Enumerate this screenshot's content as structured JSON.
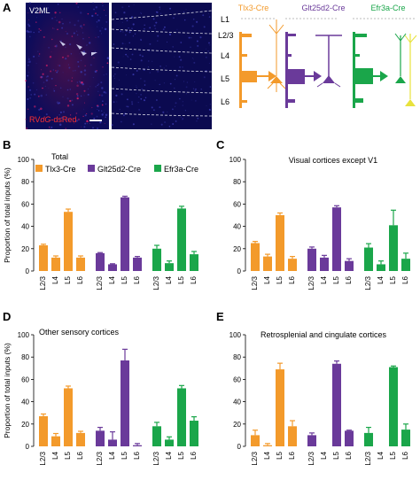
{
  "panel_letters": [
    "A",
    "B",
    "C",
    "D",
    "E"
  ],
  "panel_a": {
    "region_label": "V2ML",
    "stain_label_prefix": "RV",
    "stain_label_italic": "dG",
    "stain_label_suffix": "-dsRed",
    "layers": [
      "L1",
      "L2/3",
      "L4",
      "L5",
      "L6"
    ],
    "lines": [
      {
        "name": "Tlx3-Cre",
        "color": "#f39a2b"
      },
      {
        "name": "Glt25d2-Cre",
        "color": "#6a3a9a"
      },
      {
        "name": "Efr3a-Cre",
        "color": "#1aa64a"
      }
    ],
    "efr3a_secondary_color": "#e8e23c"
  },
  "y_axis_label": "Proportion of total inputs (%)",
  "legend": [
    "Tlx3-Cre",
    "Glt25d2-Cre",
    "Efr3a-Cre"
  ],
  "colors": [
    "#f39a2b",
    "#6a3a9a",
    "#1aa64a"
  ],
  "chart_data": [
    {
      "panel": "B",
      "type": "bar",
      "title": "Total",
      "categories": [
        "L2/3",
        "L4",
        "L5",
        "L6"
      ],
      "ylim": [
        0,
        100
      ],
      "yticks": [
        0,
        20,
        40,
        60,
        80,
        100
      ],
      "series": [
        {
          "name": "Tlx3-Cre",
          "values": [
            23,
            12,
            53,
            12
          ],
          "errors": [
            1,
            1.5,
            2.5,
            1.5
          ]
        },
        {
          "name": "Glt25d2-Cre",
          "values": [
            16,
            6,
            66,
            12
          ],
          "errors": [
            0.5,
            0.5,
            1,
            1
          ]
        },
        {
          "name": "Efr3a-Cre",
          "values": [
            20,
            7,
            56,
            15
          ],
          "errors": [
            3,
            2,
            2,
            2.5
          ]
        }
      ]
    },
    {
      "panel": "C",
      "type": "bar",
      "title": "Visual cortices except V1",
      "categories": [
        "L2/3",
        "L4",
        "L5",
        "L6"
      ],
      "ylim": [
        0,
        100
      ],
      "yticks": [
        0,
        20,
        40,
        60,
        80,
        100
      ],
      "series": [
        {
          "name": "Tlx3-Cre",
          "values": [
            25,
            13,
            50,
            11
          ],
          "errors": [
            1.5,
            2,
            2,
            2
          ]
        },
        {
          "name": "Glt25d2-Cre",
          "values": [
            20,
            12,
            57,
            9
          ],
          "errors": [
            1.5,
            2,
            1.5,
            2
          ]
        },
        {
          "name": "Efr3a-Cre",
          "values": [
            21,
            6,
            41,
            11
          ],
          "errors": [
            3.5,
            3,
            13.5,
            5
          ]
        }
      ]
    },
    {
      "panel": "D",
      "type": "bar",
      "title": "Other sensory cortices",
      "categories": [
        "L2/3",
        "L4",
        "L5",
        "L6"
      ],
      "ylim": [
        0,
        100
      ],
      "yticks": [
        0,
        20,
        40,
        60,
        80,
        100
      ],
      "series": [
        {
          "name": "Tlx3-Cre",
          "values": [
            27,
            9,
            52,
            12
          ],
          "errors": [
            2,
            2.5,
            2,
            1.5
          ]
        },
        {
          "name": "Glt25d2-Cre",
          "values": [
            14,
            6,
            77,
            1
          ],
          "errors": [
            3,
            7,
            10,
            1.5
          ]
        },
        {
          "name": "Efr3a-Cre",
          "values": [
            18,
            6,
            52,
            23
          ],
          "errors": [
            3.5,
            2.5,
            2.5,
            3.5
          ]
        }
      ]
    },
    {
      "panel": "E",
      "type": "bar",
      "title": "Retrosplenial and cingulate cortices",
      "categories": [
        "L2/3",
        "L4",
        "L5",
        "L6"
      ],
      "ylim": [
        0,
        100
      ],
      "yticks": [
        0,
        20,
        40,
        60,
        80,
        100
      ],
      "series": [
        {
          "name": "Tlx3-Cre",
          "values": [
            10,
            1,
            69,
            18
          ],
          "errors": [
            4.5,
            1.5,
            5.5,
            5
          ]
        },
        {
          "name": "Glt25d2-Cre",
          "values": [
            10,
            0,
            74,
            14
          ],
          "errors": [
            2,
            0,
            2.5,
            0.5
          ]
        },
        {
          "name": "Efr3a-Cre",
          "values": [
            12,
            0,
            71,
            15
          ],
          "errors": [
            5,
            0,
            1,
            5
          ]
        }
      ]
    }
  ]
}
